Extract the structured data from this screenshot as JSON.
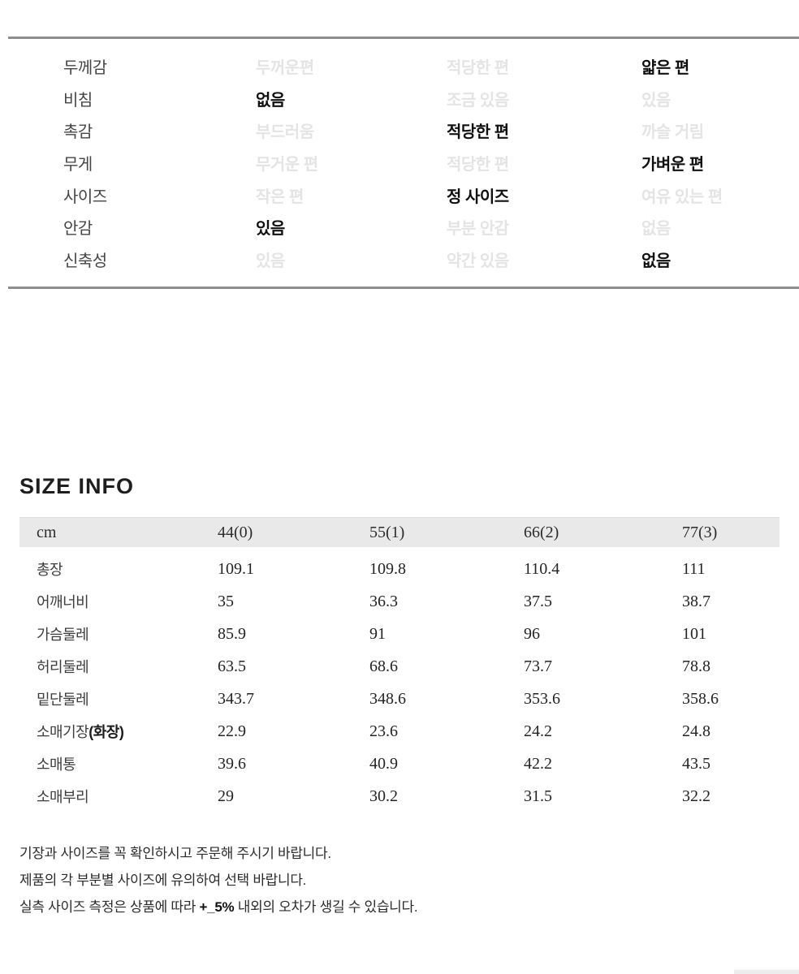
{
  "colors": {
    "divider": "#8e8e8e",
    "table_header_bg": "#e9e9e9",
    "selected_text": "#101010",
    "unselected_text": "#e4e4e4"
  },
  "fabric_info": {
    "rows": [
      {
        "label": "두께감",
        "options": [
          {
            "text": "두꺼운편",
            "selected": false
          },
          {
            "text": "적당한 편",
            "selected": false
          },
          {
            "text": "얇은 편",
            "selected": true
          }
        ]
      },
      {
        "label": "비침",
        "options": [
          {
            "text": "없음",
            "selected": true
          },
          {
            "text": "조금 있음",
            "selected": false
          },
          {
            "text": "있음",
            "selected": false
          }
        ]
      },
      {
        "label": "촉감",
        "options": [
          {
            "text": "부드러움",
            "selected": false
          },
          {
            "text": "적당한 편",
            "selected": true
          },
          {
            "text": "까슬 거림",
            "selected": false
          }
        ]
      },
      {
        "label": "무게",
        "options": [
          {
            "text": "무거운 편",
            "selected": false
          },
          {
            "text": "적당한 편",
            "selected": false
          },
          {
            "text": "가벼운 편",
            "selected": true
          }
        ]
      },
      {
        "label": "사이즈",
        "options": [
          {
            "text": "작은 편",
            "selected": false
          },
          {
            "text": "정 사이즈",
            "selected": true
          },
          {
            "text": "여유 있는 편",
            "selected": false
          }
        ]
      },
      {
        "label": "안감",
        "options": [
          {
            "text": "있음",
            "selected": true
          },
          {
            "text": "부분 안감",
            "selected": false
          },
          {
            "text": "없음",
            "selected": false
          }
        ]
      },
      {
        "label": "신축성",
        "options": [
          {
            "text": "있음",
            "selected": false
          },
          {
            "text": "약간 있음",
            "selected": false
          },
          {
            "text": "없음",
            "selected": true
          }
        ]
      }
    ]
  },
  "size_info": {
    "title": "SIZE INFO",
    "unit_header": "cm",
    "columns": [
      "44(0)",
      "55(1)",
      "66(2)",
      "77(3)"
    ],
    "rows": [
      {
        "label": "총장",
        "values": [
          "109.1",
          "109.8",
          "110.4",
          "111"
        ]
      },
      {
        "label": "어깨너비",
        "values": [
          "35",
          "36.3",
          "37.5",
          "38.7"
        ]
      },
      {
        "label": "가슴둘레",
        "values": [
          "85.9",
          "91",
          "96",
          "101"
        ]
      },
      {
        "label": "허리둘레",
        "values": [
          "63.5",
          "68.6",
          "73.7",
          "78.8"
        ]
      },
      {
        "label": "밑단둘레",
        "values": [
          "343.7",
          "348.6",
          "353.6",
          "358.6"
        ]
      },
      {
        "label": "소매기장",
        "label_suffix": "(화장)",
        "values": [
          "22.9",
          "23.6",
          "24.2",
          "24.8"
        ]
      },
      {
        "label": "소매통",
        "values": [
          "39.6",
          "40.9",
          "42.2",
          "43.5"
        ]
      },
      {
        "label": "소매부리",
        "values": [
          "29",
          "30.2",
          "31.5",
          "32.2"
        ]
      }
    ]
  },
  "notes": [
    "기장과 사이즈를 꼭 확인하시고 주문해 주시기 바랍니다.",
    "제품의 각 부분별 사이즈에 유의하여 선택 바랍니다.",
    {
      "prefix": "실측 사이즈 측정은 상품에 따라 ",
      "em": "+_5%",
      "suffix": " 내외의 오차가 생길 수 있습니다."
    }
  ]
}
